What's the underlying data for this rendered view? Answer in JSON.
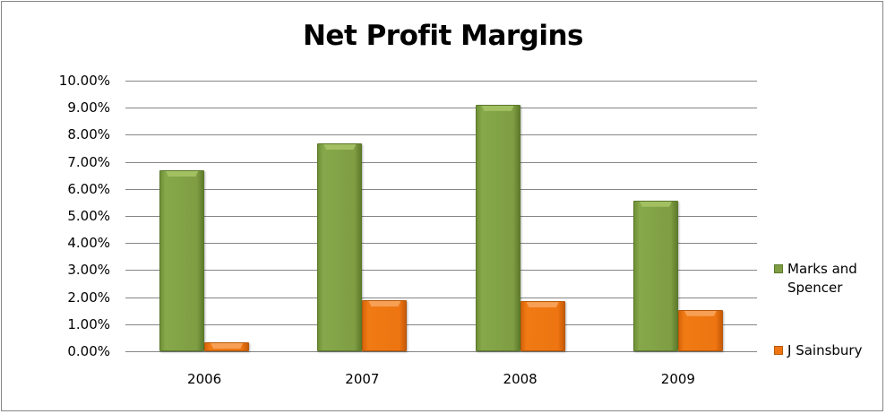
{
  "chart_data": {
    "type": "bar",
    "title": "Net Profit Margins",
    "xlabel": "",
    "ylabel": "",
    "categories": [
      "2006",
      "2007",
      "2008",
      "2009"
    ],
    "series": [
      {
        "name": "Marks and Spencer",
        "color": "#7f9d43",
        "values": [
          6.69,
          7.68,
          9.11,
          5.57
        ]
      },
      {
        "name": "J Sainsbury",
        "color": "#ee7511",
        "values": [
          0.33,
          1.89,
          1.85,
          1.53
        ]
      }
    ],
    "ylim": [
      0,
      10
    ],
    "yticks": [
      "0.00%",
      "1.00%",
      "2.00%",
      "3.00%",
      "4.00%",
      "5.00%",
      "6.00%",
      "7.00%",
      "8.00%",
      "9.00%",
      "10.00%"
    ],
    "grid": true,
    "legend_position": "right",
    "value_format": "percent"
  },
  "legend": {
    "items": [
      {
        "label_line1": "Marks and",
        "label_line2": "Spencer"
      },
      {
        "label_line1": "J Sainsbury"
      }
    ]
  }
}
